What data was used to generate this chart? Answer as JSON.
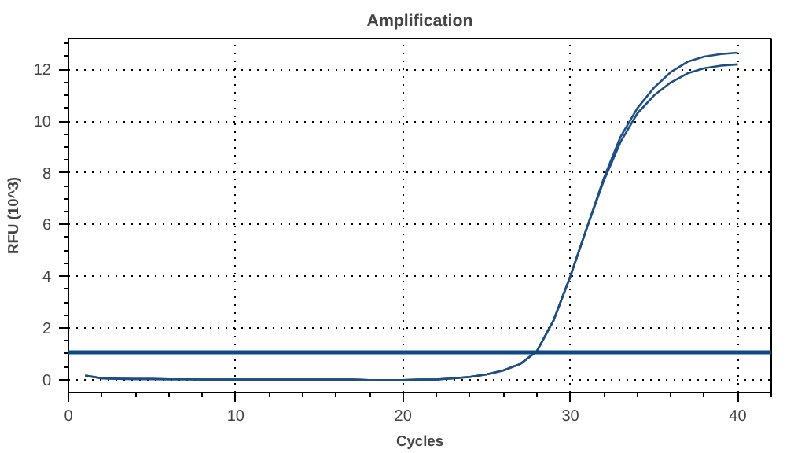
{
  "chart_data": {
    "type": "line",
    "title": "Amplification",
    "xlabel": "Cycles",
    "ylabel": "RFU (10^3)",
    "x": [
      1,
      2,
      3,
      4,
      5,
      6,
      7,
      8,
      9,
      10,
      11,
      12,
      13,
      14,
      15,
      16,
      17,
      18,
      19,
      20,
      21,
      22,
      23,
      24,
      25,
      26,
      27,
      28,
      29,
      30,
      31,
      32,
      33,
      34,
      35,
      36,
      37,
      38,
      39,
      40
    ],
    "series": [
      {
        "color": "#1f4e84",
        "values": [
          0.15,
          0.05,
          0.03,
          0.02,
          0.02,
          0.01,
          0.01,
          0.0,
          0.0,
          0.0,
          0.0,
          0.0,
          0.0,
          0.0,
          0.0,
          0.0,
          0.0,
          -0.02,
          -0.02,
          -0.02,
          0.0,
          0.0,
          0.05,
          0.1,
          0.2,
          0.35,
          0.6,
          1.1,
          2.3,
          4.0,
          5.9,
          7.8,
          9.4,
          10.5,
          11.3,
          11.9,
          12.3,
          12.5,
          12.6,
          12.65
        ]
      },
      {
        "color": "#1f4e84",
        "values": [
          0.15,
          0.05,
          0.03,
          0.02,
          0.02,
          0.01,
          0.01,
          0.0,
          0.0,
          0.0,
          0.0,
          0.0,
          0.0,
          0.0,
          0.0,
          0.0,
          0.0,
          -0.02,
          -0.02,
          -0.02,
          0.0,
          0.0,
          0.05,
          0.1,
          0.2,
          0.35,
          0.6,
          1.1,
          2.3,
          4.0,
          5.9,
          7.7,
          9.2,
          10.3,
          11.0,
          11.5,
          11.85,
          12.05,
          12.15,
          12.2
        ]
      }
    ],
    "ref_lines": [
      {
        "axis": "y",
        "value": 1.05,
        "color": "#0b4a85"
      }
    ],
    "xlim": [
      0,
      42
    ],
    "ylim": [
      -0.5,
      13.2
    ],
    "xticks": [
      0,
      10,
      20,
      30,
      40
    ],
    "yticks": [
      0,
      2,
      4,
      6,
      8,
      10,
      12
    ],
    "grid": true,
    "line_style": "solid"
  }
}
